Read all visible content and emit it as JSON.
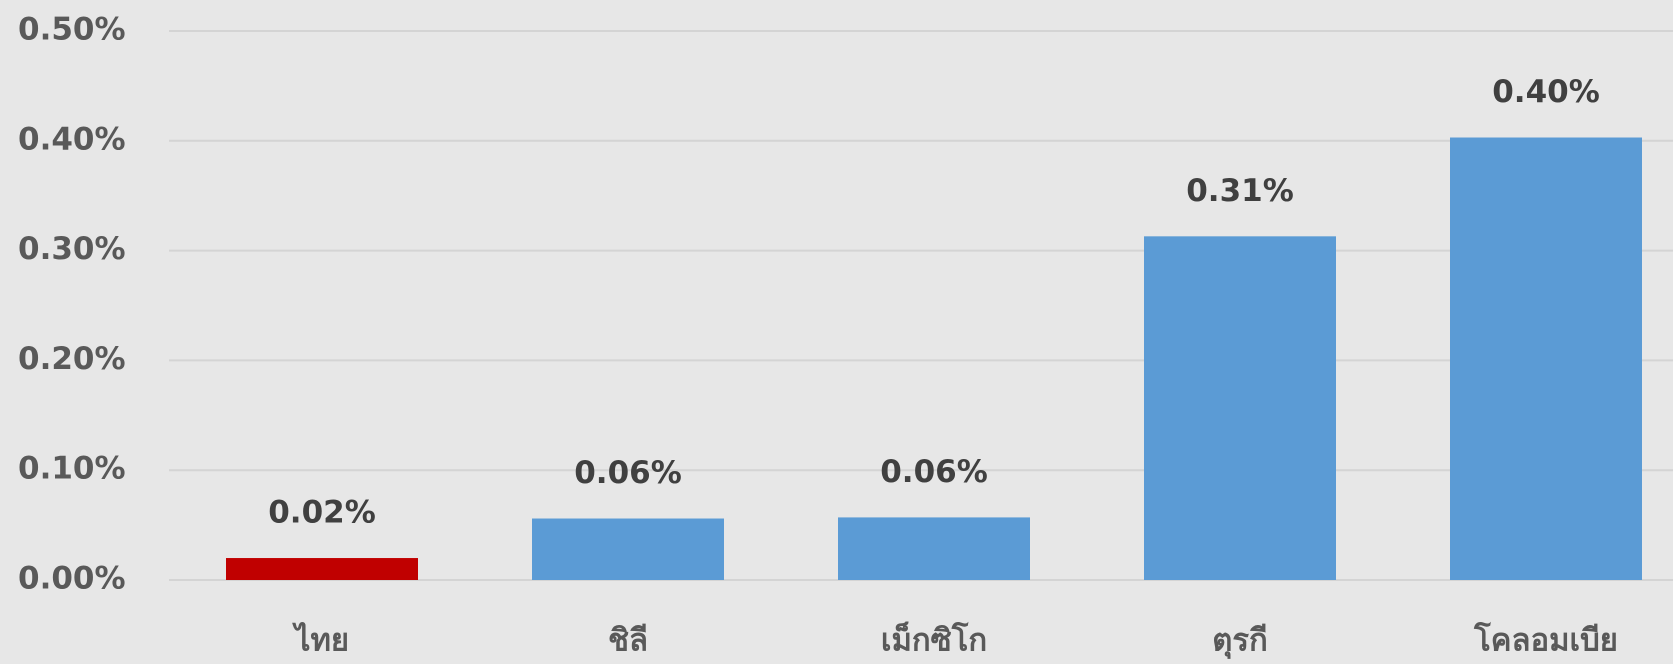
{
  "chart_data": {
    "type": "bar",
    "categories": [
      "ไทย",
      "ชิลี",
      "เม็กซิโก",
      "ตุรกี",
      "โคลอมเบีย"
    ],
    "values": [
      0.02,
      0.056,
      0.057,
      0.313,
      0.403
    ],
    "value_labels": [
      "0.02%",
      "0.06%",
      "0.06%",
      "0.31%",
      "0.40%"
    ],
    "colors": [
      "#c00000",
      "#5b9bd5",
      "#5b9bd5",
      "#5b9bd5",
      "#5b9bd5"
    ],
    "ylim": [
      0,
      0.5
    ],
    "yticks": [
      {
        "value": 0,
        "label": "0.00%"
      },
      {
        "value": 0.1,
        "label": "0.10%"
      },
      {
        "value": 0.2,
        "label": "0.20%"
      },
      {
        "value": 0.3,
        "label": "0.30%"
      },
      {
        "value": 0.4,
        "label": "0.40%"
      },
      {
        "value": 0.5,
        "label": "0.50%"
      }
    ],
    "grid": true
  }
}
